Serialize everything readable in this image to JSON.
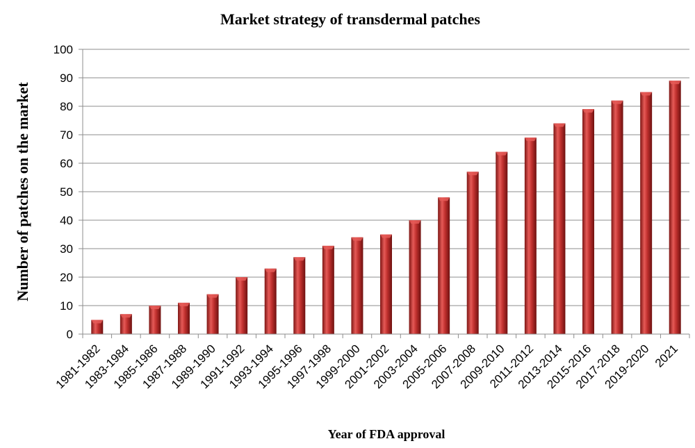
{
  "chart_data": {
    "type": "bar",
    "title": "Market strategy of transdermal patches",
    "xlabel": "Year of FDA approval",
    "ylabel": "Number of patches on the market",
    "categories": [
      "1981-1982",
      "1983-1984",
      "1985-1986",
      "1987-1988",
      "1989-1990",
      "1991-1992",
      "1993-1994",
      "1995-1996",
      "1997-1998",
      "1999-2000",
      "2001-2002",
      "2003-2004",
      "2005-2006",
      "2007-2008",
      "2009-2010",
      "2011-2012",
      "2013-2014",
      "2015-2016",
      "2017-2018",
      "2019-2020",
      "2021"
    ],
    "values": [
      5,
      7,
      10,
      11,
      14,
      20,
      23,
      27,
      31,
      34,
      35,
      40,
      48,
      57,
      64,
      69,
      74,
      79,
      82,
      85,
      89
    ],
    "ylim": [
      0,
      100
    ],
    "yticks": [
      0,
      10,
      20,
      30,
      40,
      50,
      60,
      70,
      80,
      90,
      100
    ],
    "grid": true,
    "legend": "none",
    "bar_color": "#c0302e",
    "bar_highlight": "#e55a57",
    "bar_shadow": "#7e1614"
  }
}
